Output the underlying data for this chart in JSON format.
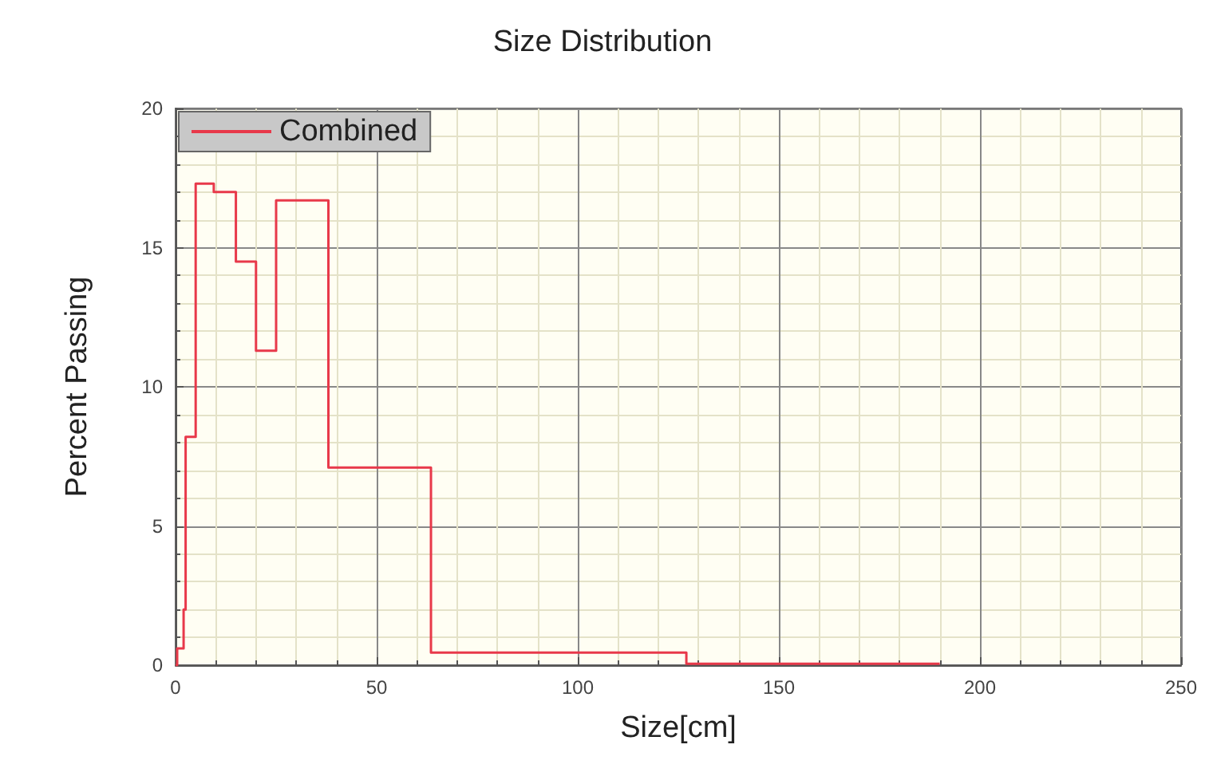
{
  "chart_data": {
    "type": "step",
    "title": "Size Distribution",
    "xlabel": "Size[cm]",
    "ylabel": "Percent Passing",
    "series": [
      {
        "name": "Combined",
        "color": "#e8394a",
        "x": [
          0,
          0.4,
          2,
          2.5,
          5,
          9.5,
          15,
          20,
          25,
          38,
          63.5,
          127,
          190
        ],
        "values": [
          0,
          0.6,
          2,
          8.2,
          17.3,
          17,
          14.5,
          11.3,
          16.7,
          7.1,
          0.45,
          0.05,
          0.05
        ]
      }
    ],
    "xlim": [
      0,
      250
    ],
    "xticks": [
      0,
      50,
      100,
      150,
      200,
      250
    ],
    "ylim": [
      0,
      20
    ],
    "yticks": [
      0,
      5,
      10,
      15,
      20
    ],
    "grid": true,
    "legend": "top left",
    "marker": "none",
    "line_style": "solid"
  }
}
